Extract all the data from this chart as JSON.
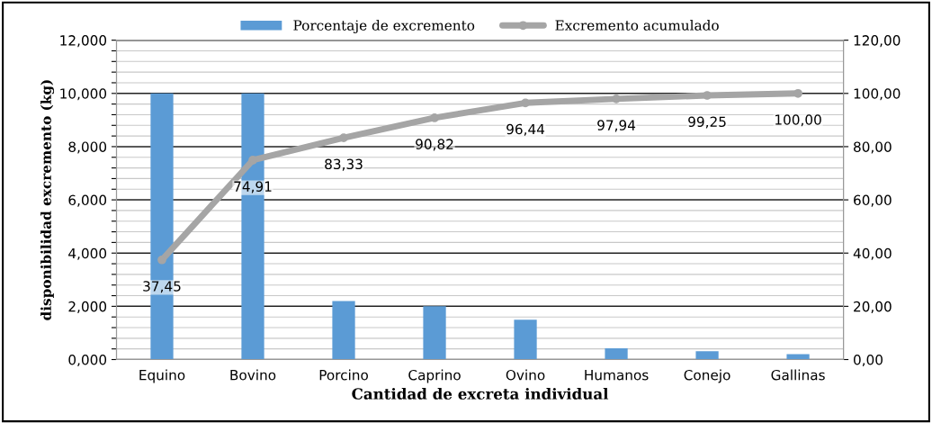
{
  "chart_data": {
    "type": "bar",
    "xlabel": "Cantidad de excreta individual",
    "ylabel": "disponibilidad excremento (kg)",
    "categories": [
      "Equino",
      "Bovino",
      "Porcino",
      "Caprino",
      "Ovino",
      "Humanos",
      "Conejo",
      "Gallinas"
    ],
    "series": [
      {
        "name": "Porcentaje de excremento",
        "color": "#5b9bd5",
        "values": [
          10.0,
          10.0,
          2.2,
          2.0,
          1.5,
          0.42,
          0.31,
          0.2
        ]
      },
      {
        "name": "Excremento acumulado",
        "type": "line",
        "axis": "y2",
        "color": "#a5a5a5",
        "marker": "circle",
        "values": [
          37.45,
          74.91,
          83.33,
          90.82,
          96.44,
          97.94,
          99.25,
          100.0
        ],
        "value_labels": [
          "37,45",
          "74,91",
          "83,33",
          "90,82",
          "96,44",
          "97,94",
          "99,25",
          "100,00"
        ]
      }
    ],
    "ylim": [
      0,
      12
    ],
    "yticks": [
      {
        "value": 0,
        "label": "0,000"
      },
      {
        "value": 0.4,
        "label": null
      },
      {
        "value": 0.8,
        "label": null
      },
      {
        "value": 1.2,
        "label": null
      },
      {
        "value": 1.6,
        "label": null
      },
      {
        "value": 2,
        "label": "2,000"
      },
      {
        "value": 2.4,
        "label": null
      },
      {
        "value": 2.8,
        "label": null
      },
      {
        "value": 3.2,
        "label": null
      },
      {
        "value": 3.6,
        "label": null
      },
      {
        "value": 4,
        "label": "4,000"
      },
      {
        "value": 4.4,
        "label": null
      },
      {
        "value": 4.8,
        "label": null
      },
      {
        "value": 5.2,
        "label": null
      },
      {
        "value": 5.6,
        "label": null
      },
      {
        "value": 6,
        "label": "6,000"
      },
      {
        "value": 6.4,
        "label": null
      },
      {
        "value": 6.8,
        "label": null
      },
      {
        "value": 7.2,
        "label": null
      },
      {
        "value": 7.6,
        "label": null
      },
      {
        "value": 8,
        "label": "8,000"
      },
      {
        "value": 8.4,
        "label": null
      },
      {
        "value": 8.8,
        "label": null
      },
      {
        "value": 9.2,
        "label": null
      },
      {
        "value": 9.6,
        "label": null
      },
      {
        "value": 10,
        "label": "10,000"
      },
      {
        "value": 10.4,
        "label": null
      },
      {
        "value": 10.8,
        "label": null
      },
      {
        "value": 11.2,
        "label": null
      },
      {
        "value": 11.6,
        "label": null
      },
      {
        "value": 12,
        "label": "12,000"
      }
    ],
    "y2lim": [
      0,
      120
    ],
    "y2ticks": [
      {
        "value": 0,
        "label": "0,00"
      },
      {
        "value": 20,
        "label": "20,00"
      },
      {
        "value": 40,
        "label": "40,00"
      },
      {
        "value": 60,
        "label": "60,00"
      },
      {
        "value": 80,
        "label": "80,00"
      },
      {
        "value": 100,
        "label": "100,00"
      },
      {
        "value": 120,
        "label": "120,00"
      }
    ],
    "grid": "y",
    "legend": "top"
  }
}
